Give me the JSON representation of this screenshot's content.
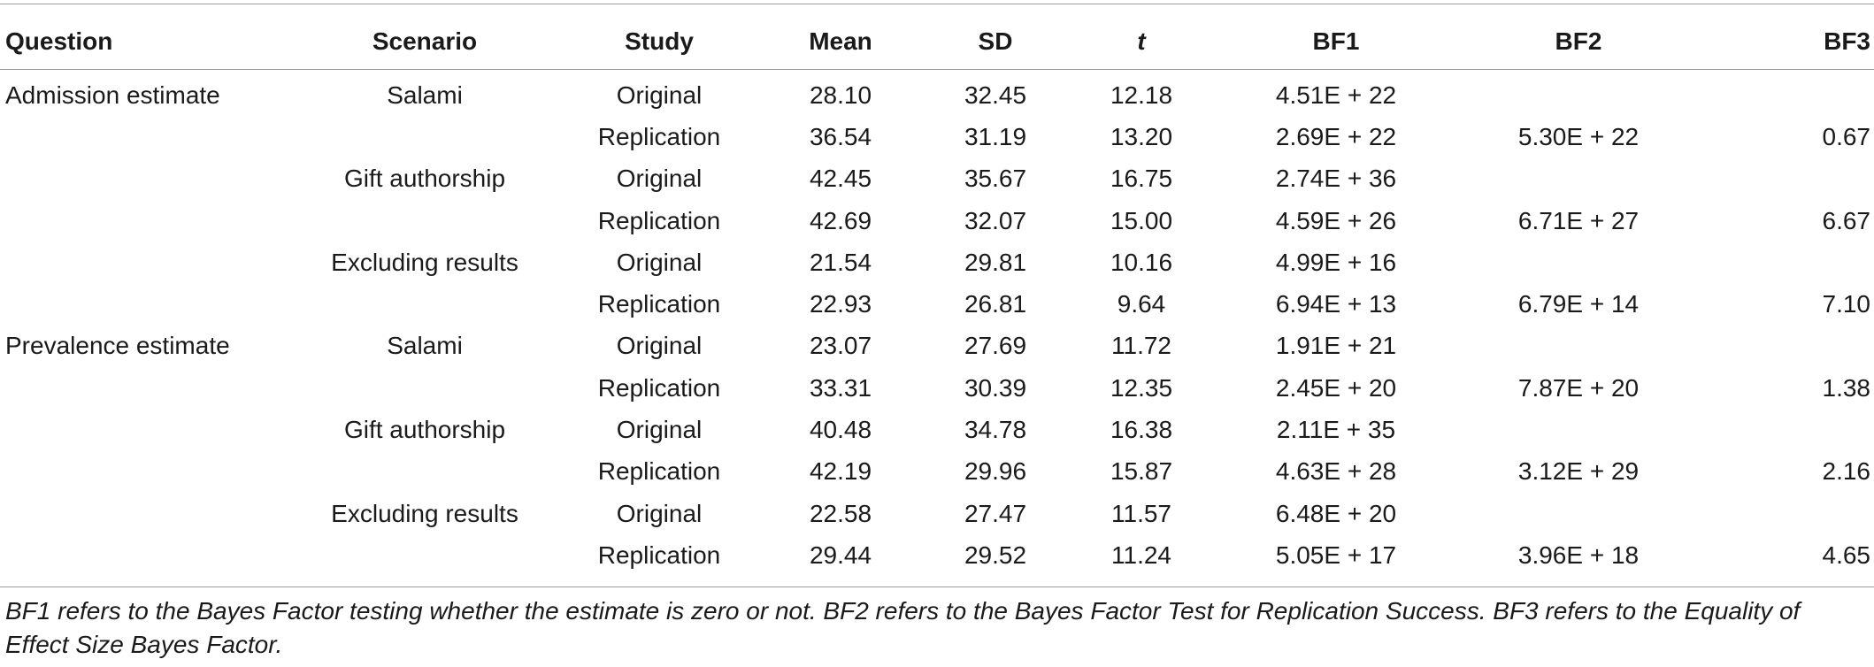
{
  "table": {
    "headers": [
      "Question",
      "Scenario",
      "Study",
      "Mean",
      "SD",
      "t",
      "BF1",
      "BF2",
      "BF3"
    ],
    "rows": [
      {
        "question": "Admission estimate",
        "scenario": "Salami",
        "study": "Original",
        "mean": "28.10",
        "sd": "32.45",
        "t": "12.18",
        "bf1": "4.51E + 22",
        "bf2": "",
        "bf3": ""
      },
      {
        "question": "",
        "scenario": "",
        "study": "Replication",
        "mean": "36.54",
        "sd": "31.19",
        "t": "13.20",
        "bf1": "2.69E + 22",
        "bf2": "5.30E + 22",
        "bf3": "0.67"
      },
      {
        "question": "",
        "scenario": "Gift authorship",
        "study": "Original",
        "mean": "42.45",
        "sd": "35.67",
        "t": "16.75",
        "bf1": "2.74E + 36",
        "bf2": "",
        "bf3": ""
      },
      {
        "question": "",
        "scenario": "",
        "study": "Replication",
        "mean": "42.69",
        "sd": "32.07",
        "t": "15.00",
        "bf1": "4.59E + 26",
        "bf2": "6.71E + 27",
        "bf3": "6.67"
      },
      {
        "question": "",
        "scenario": "Excluding results",
        "study": "Original",
        "mean": "21.54",
        "sd": "29.81",
        "t": "10.16",
        "bf1": "4.99E + 16",
        "bf2": "",
        "bf3": ""
      },
      {
        "question": "",
        "scenario": "",
        "study": "Replication",
        "mean": "22.93",
        "sd": "26.81",
        "t": "9.64",
        "bf1": "6.94E + 13",
        "bf2": "6.79E + 14",
        "bf3": "7.10"
      },
      {
        "question": "Prevalence estimate",
        "scenario": "Salami",
        "study": "Original",
        "mean": "23.07",
        "sd": "27.69",
        "t": "11.72",
        "bf1": "1.91E + 21",
        "bf2": "",
        "bf3": ""
      },
      {
        "question": "",
        "scenario": "",
        "study": "Replication",
        "mean": "33.31",
        "sd": "30.39",
        "t": "12.35",
        "bf1": "2.45E + 20",
        "bf2": "7.87E + 20",
        "bf3": "1.38"
      },
      {
        "question": "",
        "scenario": "Gift authorship",
        "study": "Original",
        "mean": "40.48",
        "sd": "34.78",
        "t": "16.38",
        "bf1": "2.11E + 35",
        "bf2": "",
        "bf3": ""
      },
      {
        "question": "",
        "scenario": "",
        "study": "Replication",
        "mean": "42.19",
        "sd": "29.96",
        "t": "15.87",
        "bf1": "4.63E + 28",
        "bf2": "3.12E + 29",
        "bf3": "2.16"
      },
      {
        "question": "",
        "scenario": "Excluding results",
        "study": "Original",
        "mean": "22.58",
        "sd": "27.47",
        "t": "11.57",
        "bf1": "6.48E + 20",
        "bf2": "",
        "bf3": ""
      },
      {
        "question": "",
        "scenario": "",
        "study": "Replication",
        "mean": "29.44",
        "sd": "29.52",
        "t": "11.24",
        "bf1": "5.05E + 17",
        "bf2": "3.96E + 18",
        "bf3": "4.65"
      }
    ]
  },
  "footnote": "BF1 refers to the Bayes Factor testing whether the estimate is zero or not. BF2 refers to the Bayes Factor Test for Replication Success. BF3 refers to the Equality of Effect Size Bayes Factor."
}
